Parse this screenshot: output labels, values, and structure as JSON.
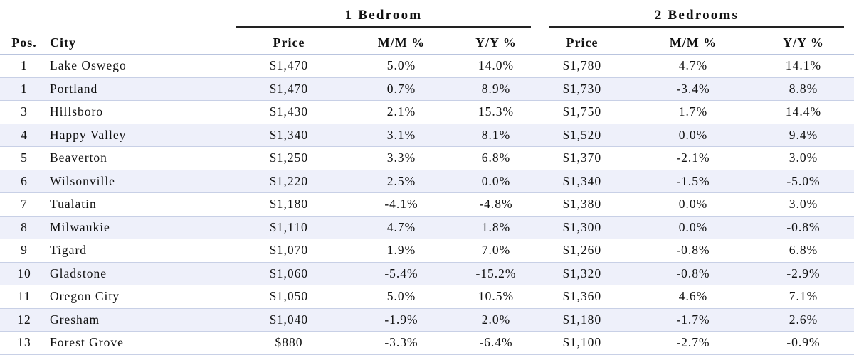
{
  "groups": {
    "one_bedroom": "1 Bedroom",
    "two_bedrooms": "2 Bedrooms"
  },
  "columns": {
    "pos": "Pos.",
    "city": "City",
    "price_1": "Price",
    "mm_1": "M/M %",
    "yy_1": "Y/Y %",
    "price_2": "Price",
    "mm_2": "M/M %",
    "yy_2": "Y/Y %"
  },
  "rows": [
    {
      "pos": "1",
      "city": "Lake Oswego",
      "price_1": "$1,470",
      "mm_1": "5.0%",
      "yy_1": "14.0%",
      "price_2": "$1,780",
      "mm_2": "4.7%",
      "yy_2": "14.1%"
    },
    {
      "pos": "1",
      "city": "Portland",
      "price_1": "$1,470",
      "mm_1": "0.7%",
      "yy_1": "8.9%",
      "price_2": "$1,730",
      "mm_2": "-3.4%",
      "yy_2": "8.8%"
    },
    {
      "pos": "3",
      "city": "Hillsboro",
      "price_1": "$1,430",
      "mm_1": "2.1%",
      "yy_1": "15.3%",
      "price_2": "$1,750",
      "mm_2": "1.7%",
      "yy_2": "14.4%"
    },
    {
      "pos": "4",
      "city": "Happy Valley",
      "price_1": "$1,340",
      "mm_1": "3.1%",
      "yy_1": "8.1%",
      "price_2": "$1,520",
      "mm_2": "0.0%",
      "yy_2": "9.4%"
    },
    {
      "pos": "5",
      "city": "Beaverton",
      "price_1": "$1,250",
      "mm_1": "3.3%",
      "yy_1": "6.8%",
      "price_2": "$1,370",
      "mm_2": "-2.1%",
      "yy_2": "3.0%"
    },
    {
      "pos": "6",
      "city": "Wilsonville",
      "price_1": "$1,220",
      "mm_1": "2.5%",
      "yy_1": "0.0%",
      "price_2": "$1,340",
      "mm_2": "-1.5%",
      "yy_2": "-5.0%"
    },
    {
      "pos": "7",
      "city": "Tualatin",
      "price_1": "$1,180",
      "mm_1": "-4.1%",
      "yy_1": "-4.8%",
      "price_2": "$1,380",
      "mm_2": "0.0%",
      "yy_2": "3.0%"
    },
    {
      "pos": "8",
      "city": "Milwaukie",
      "price_1": "$1,110",
      "mm_1": "4.7%",
      "yy_1": "1.8%",
      "price_2": "$1,300",
      "mm_2": "0.0%",
      "yy_2": "-0.8%"
    },
    {
      "pos": "9",
      "city": "Tigard",
      "price_1": "$1,070",
      "mm_1": "1.9%",
      "yy_1": "7.0%",
      "price_2": "$1,260",
      "mm_2": "-0.8%",
      "yy_2": "6.8%"
    },
    {
      "pos": "10",
      "city": "Gladstone",
      "price_1": "$1,060",
      "mm_1": "-5.4%",
      "yy_1": "-15.2%",
      "price_2": "$1,320",
      "mm_2": "-0.8%",
      "yy_2": "-2.9%"
    },
    {
      "pos": "11",
      "city": "Oregon City",
      "price_1": "$1,050",
      "mm_1": "5.0%",
      "yy_1": "10.5%",
      "price_2": "$1,360",
      "mm_2": "4.6%",
      "yy_2": "7.1%"
    },
    {
      "pos": "12",
      "city": "Gresham",
      "price_1": "$1,040",
      "mm_1": "-1.9%",
      "yy_1": "2.0%",
      "price_2": "$1,180",
      "mm_2": "-1.7%",
      "yy_2": "2.6%"
    },
    {
      "pos": "13",
      "city": "Forest Grove",
      "price_1": "$880",
      "mm_1": "-3.3%",
      "yy_1": "-6.4%",
      "price_2": "$1,100",
      "mm_2": "-2.7%",
      "yy_2": "-0.9%"
    }
  ]
}
